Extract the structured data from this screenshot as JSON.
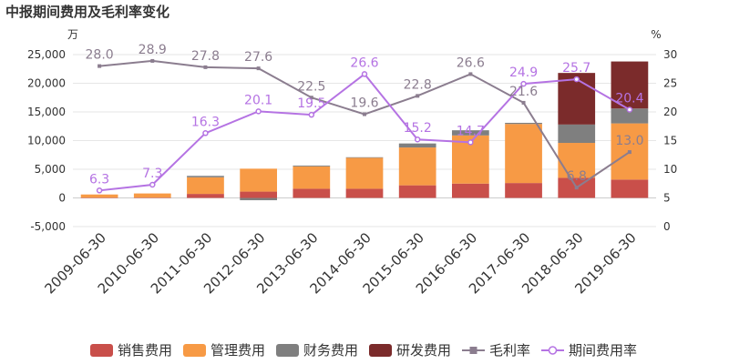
{
  "chart_data": {
    "type": "bar",
    "title": "中报期间费用及毛利率变化",
    "left_unit": "万",
    "right_unit": "%",
    "categories": [
      "2009-06-30",
      "2010-06-30",
      "2011-06-30",
      "2012-06-30",
      "2013-06-30",
      "2014-06-30",
      "2015-06-30",
      "2016-06-30",
      "2017-06-30",
      "2018-06-30",
      "2019-06-30"
    ],
    "ylim_left": [
      -5000,
      25000
    ],
    "yticks_left": [
      "-5,000",
      "0",
      "5,000",
      "10,000",
      "15,000",
      "20,000",
      "25,000"
    ],
    "ylim_right": [
      0,
      30
    ],
    "yticks_right": [
      "0",
      "5",
      "10",
      "15",
      "20",
      "25",
      "30"
    ],
    "stacked_series": [
      {
        "name": "销售费用",
        "color": "#c94f4a",
        "values": [
          50,
          60,
          700,
          1100,
          1600,
          1600,
          2200,
          2500,
          2600,
          3500,
          3200
        ]
      },
      {
        "name": "管理费用",
        "color": "#f79a45",
        "values": [
          550,
          720,
          2900,
          4000,
          3900,
          5400,
          6600,
          8400,
          10300,
          6100,
          9800
        ]
      },
      {
        "name": "财务费用",
        "color": "#7f7f7f",
        "values": [
          0,
          0,
          250,
          -400,
          150,
          100,
          700,
          900,
          200,
          3200,
          2600
        ]
      },
      {
        "name": "研发费用",
        "color": "#7b2b2b",
        "values": [
          0,
          0,
          0,
          0,
          0,
          0,
          0,
          0,
          0,
          9000,
          8200
        ]
      }
    ],
    "line_series": [
      {
        "name": "毛利率",
        "color": "#8b7d8f",
        "marker": "square",
        "values": [
          28.0,
          28.9,
          27.8,
          27.6,
          22.5,
          19.6,
          22.8,
          26.6,
          21.6,
          6.8,
          13.0
        ],
        "labels": [
          "28.0",
          "28.9",
          "27.8",
          "27.6",
          "22.5",
          "19.6",
          "22.8",
          "26.6",
          "21.6",
          "6.8",
          "13.0"
        ]
      },
      {
        "name": "期间费用率",
        "color": "#b573e3",
        "marker": "circle",
        "values": [
          6.3,
          7.3,
          16.3,
          20.1,
          19.5,
          26.6,
          15.2,
          14.7,
          24.9,
          25.7,
          20.4
        ],
        "labels": [
          "6.3",
          "7.3",
          "16.3",
          "20.1",
          "19.5",
          "26.6",
          "15.2",
          "14.7",
          "24.9",
          "25.7",
          "20.4"
        ]
      }
    ],
    "legend": [
      "销售费用",
      "管理费用",
      "财务费用",
      "研发费用",
      "毛利率",
      "期间费用率"
    ],
    "legend_position": "bottom"
  }
}
